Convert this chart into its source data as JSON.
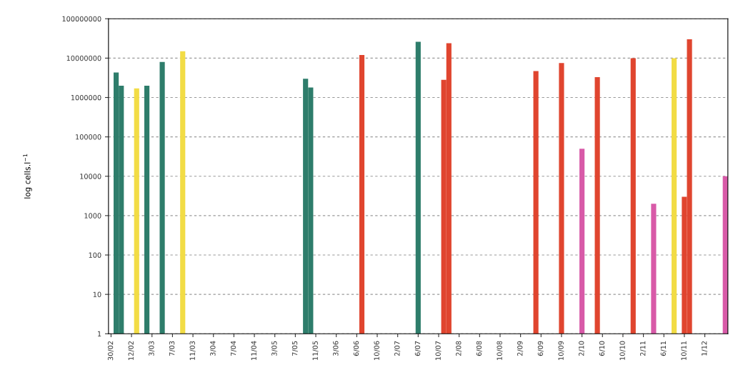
{
  "chart_data": {
    "type": "bar",
    "ylabel": "log cells.l$^{−1}$",
    "log": true,
    "grid": "y",
    "ylim": [
      1,
      100000000
    ],
    "yticks": [
      1,
      10,
      100,
      1000,
      10000,
      100000,
      1000000,
      10000000,
      100000000
    ],
    "categories": [
      "30/02",
      null,
      null,
      null,
      "12/02",
      null,
      null,
      null,
      "3/03",
      null,
      null,
      null,
      "7/03",
      null,
      null,
      null,
      "11/03",
      null,
      null,
      null,
      "3/04",
      null,
      null,
      null,
      "7/04",
      null,
      null,
      null,
      "11/04",
      null,
      null,
      null,
      "3/05",
      null,
      null,
      null,
      "7/05",
      null,
      null,
      null,
      "11/05",
      null,
      null,
      null,
      "3/06",
      null,
      null,
      null,
      "6/06",
      null,
      null,
      null,
      "10/06",
      null,
      null,
      null,
      "2/07",
      null,
      null,
      null,
      "6/07",
      null,
      null,
      null,
      "10/07",
      null,
      null,
      null,
      "2/08",
      null,
      null,
      null,
      "6/08",
      null,
      null,
      null,
      "10/08",
      null,
      null,
      null,
      "2/09",
      null,
      null,
      null,
      "6/09",
      null,
      null,
      null,
      "10/09",
      null,
      null,
      null,
      "2/10",
      null,
      null,
      null,
      "6/10",
      null,
      null,
      null,
      "10/10",
      null,
      null,
      null,
      "2/11",
      null,
      null,
      null,
      "6/11",
      null,
      null,
      null,
      "10/11",
      null,
      null,
      null,
      "1/12",
      null,
      null,
      null,
      null
    ],
    "values": [
      null,
      4300000,
      2000000,
      null,
      null,
      1700000,
      null,
      2000000,
      null,
      null,
      8000000,
      null,
      null,
      null,
      15000000,
      null,
      null,
      null,
      null,
      null,
      null,
      null,
      null,
      null,
      null,
      null,
      null,
      null,
      null,
      null,
      null,
      null,
      null,
      null,
      null,
      null,
      null,
      null,
      3000000,
      1800000,
      null,
      null,
      null,
      null,
      null,
      null,
      null,
      null,
      null,
      12000000,
      null,
      null,
      null,
      null,
      null,
      null,
      null,
      null,
      null,
      null,
      26000000,
      null,
      null,
      null,
      null,
      2800000,
      24000000,
      null,
      null,
      null,
      null,
      null,
      null,
      null,
      null,
      null,
      null,
      null,
      null,
      null,
      null,
      null,
      null,
      4700000,
      null,
      null,
      null,
      null,
      7500000,
      null,
      null,
      null,
      50000,
      null,
      null,
      3300000,
      null,
      null,
      null,
      null,
      null,
      null,
      10000000,
      null,
      null,
      null,
      2000,
      null,
      null,
      null,
      10000000,
      null,
      3000,
      30000000,
      null,
      null,
      null,
      null,
      null,
      null,
      10000
    ],
    "colors": [
      null,
      "#2e7d6b",
      "#2e7d6b",
      null,
      null,
      "#f2dc45",
      null,
      "#2e7d6b",
      null,
      null,
      "#2e7d6b",
      null,
      null,
      null,
      "#f2dc45",
      null,
      null,
      null,
      null,
      null,
      null,
      null,
      null,
      null,
      null,
      null,
      null,
      null,
      null,
      null,
      null,
      null,
      null,
      null,
      null,
      null,
      null,
      null,
      "#2e7d6b",
      "#2e7d6b",
      null,
      null,
      null,
      null,
      null,
      null,
      null,
      null,
      null,
      "#e0452f",
      null,
      null,
      null,
      null,
      null,
      null,
      null,
      null,
      null,
      null,
      "#2e7d6b",
      null,
      null,
      null,
      null,
      "#e0452f",
      "#e0452f",
      null,
      null,
      null,
      null,
      null,
      null,
      null,
      null,
      null,
      null,
      null,
      null,
      null,
      null,
      null,
      null,
      "#e0452f",
      null,
      null,
      null,
      null,
      "#e0452f",
      null,
      null,
      null,
      "#d85aa8",
      null,
      null,
      "#e0452f",
      null,
      null,
      null,
      null,
      null,
      null,
      "#e0452f",
      null,
      null,
      null,
      "#d85aa8",
      null,
      null,
      null,
      "#f2dc45",
      null,
      "#e0452f",
      "#e0452f",
      null,
      null,
      null,
      null,
      null,
      null,
      "#d85aa8"
    ]
  }
}
